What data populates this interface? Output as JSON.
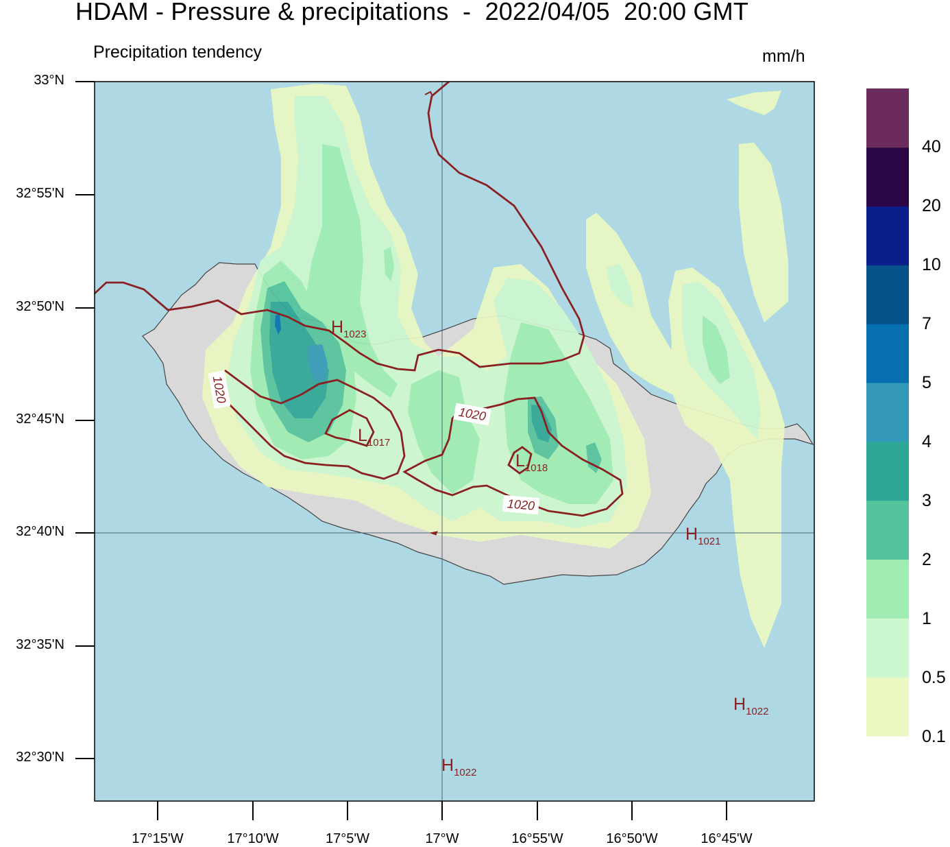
{
  "header": {
    "title": "HDAM - Pressure & precipitations  -  2022/04/05  20:00 GMT",
    "subtitle": "Precipitation tendency",
    "units": "mm/h"
  },
  "axes": {
    "lat_labels": [
      "33°N",
      "32°55'N",
      "32°50'N",
      "32°45'N",
      "32°40'N",
      "32°35'N",
      "32°30'N"
    ],
    "lon_labels": [
      "17°15'W",
      "17°10'W",
      "17°5'W",
      "17°W",
      "16°55'W",
      "16°50'W",
      "16°45'W"
    ]
  },
  "colorbar": {
    "labels": [
      "40",
      "20",
      "10",
      "7",
      "5",
      "4",
      "3",
      "2",
      "1",
      "0.5",
      "0.1"
    ],
    "colors": [
      "#eaf8c2",
      "#cdf8cf",
      "#9fedb3",
      "#55c39c",
      "#2ea796",
      "#3499b6",
      "#066fb0",
      "#06538c",
      "#0b1f8c",
      "#2a0644",
      "#6b2b5c"
    ]
  },
  "pressure_labels": {
    "centers": [
      {
        "type": "H",
        "value": "1023"
      },
      {
        "type": "L",
        "value": "1017"
      },
      {
        "type": "L",
        "value": "1018"
      },
      {
        "type": "H",
        "value": "1021"
      },
      {
        "type": "H",
        "value": "1022"
      },
      {
        "type": "H",
        "value": "1022"
      }
    ],
    "isobar_labels": [
      "1020",
      "1020",
      "1020"
    ]
  },
  "colors": {
    "sea": "#add8e4",
    "land": "#d9d9d9",
    "isobar": "#8b2022"
  }
}
